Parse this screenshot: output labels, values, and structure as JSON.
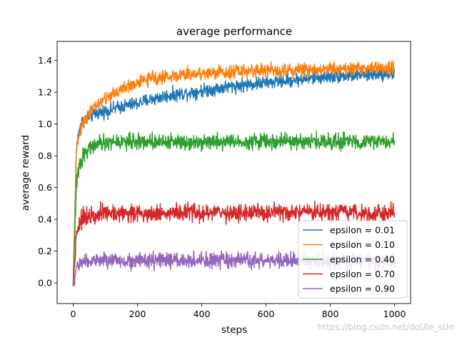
{
  "chart_data": {
    "type": "line",
    "title": "average performance",
    "xlabel": "steps",
    "ylabel": "average reward",
    "xlim": [
      -50,
      1050
    ],
    "ylim": [
      -0.13,
      1.52
    ],
    "xticks": [
      "0",
      "200",
      "400",
      "600",
      "800",
      "1000"
    ],
    "xtick_values": [
      0,
      200,
      400,
      600,
      800,
      1000
    ],
    "yticks": [
      "0.0",
      "0.2",
      "0.4",
      "0.6",
      "0.8",
      "1.0",
      "1.2",
      "1.4"
    ],
    "ytick_values": [
      0.0,
      0.2,
      0.4,
      0.6,
      0.8,
      1.0,
      1.2,
      1.4
    ],
    "grid": false,
    "legend_position": "lower-right",
    "series": [
      {
        "name": "epsilon = 0.01",
        "color": "#1f77b4",
        "x": [
          0,
          10,
          20,
          30,
          50,
          75,
          100,
          150,
          200,
          250,
          300,
          400,
          500,
          600,
          700,
          800,
          900,
          1000
        ],
        "values": [
          -0.02,
          0.85,
          0.98,
          1.02,
          1.05,
          1.07,
          1.08,
          1.11,
          1.13,
          1.16,
          1.18,
          1.21,
          1.24,
          1.26,
          1.28,
          1.3,
          1.31,
          1.32
        ],
        "noise": 0.03
      },
      {
        "name": "epsilon = 0.10",
        "color": "#ff7f0e",
        "x": [
          0,
          10,
          20,
          30,
          50,
          75,
          100,
          150,
          200,
          250,
          300,
          400,
          500,
          600,
          700,
          800,
          900,
          1000
        ],
        "values": [
          -0.02,
          0.82,
          0.95,
          1.01,
          1.07,
          1.12,
          1.16,
          1.22,
          1.26,
          1.29,
          1.3,
          1.32,
          1.33,
          1.34,
          1.34,
          1.35,
          1.35,
          1.35
        ],
        "noise": 0.03
      },
      {
        "name": "epsilon = 0.40",
        "color": "#2ca02c",
        "x": [
          0,
          10,
          20,
          30,
          50,
          75,
          100,
          150,
          200,
          300,
          400,
          500,
          600,
          700,
          800,
          900,
          1000
        ],
        "values": [
          -0.02,
          0.62,
          0.74,
          0.8,
          0.85,
          0.87,
          0.88,
          0.89,
          0.89,
          0.89,
          0.89,
          0.89,
          0.89,
          0.89,
          0.89,
          0.89,
          0.89
        ],
        "noise": 0.035
      },
      {
        "name": "epsilon = 0.70",
        "color": "#d62728",
        "x": [
          0,
          10,
          20,
          30,
          50,
          75,
          100,
          200,
          400,
          600,
          800,
          1000
        ],
        "values": [
          -0.02,
          0.32,
          0.38,
          0.41,
          0.43,
          0.44,
          0.44,
          0.44,
          0.44,
          0.44,
          0.44,
          0.44
        ],
        "noise": 0.04
      },
      {
        "name": "epsilon = 0.90",
        "color": "#9467bd",
        "x": [
          0,
          10,
          20,
          30,
          50,
          100,
          200,
          400,
          600,
          800,
          1000
        ],
        "values": [
          -0.02,
          0.1,
          0.12,
          0.13,
          0.14,
          0.14,
          0.14,
          0.14,
          0.14,
          0.14,
          0.14
        ],
        "noise": 0.035
      }
    ]
  },
  "watermark": "https://blog.csdn.net/doUle_sUn"
}
